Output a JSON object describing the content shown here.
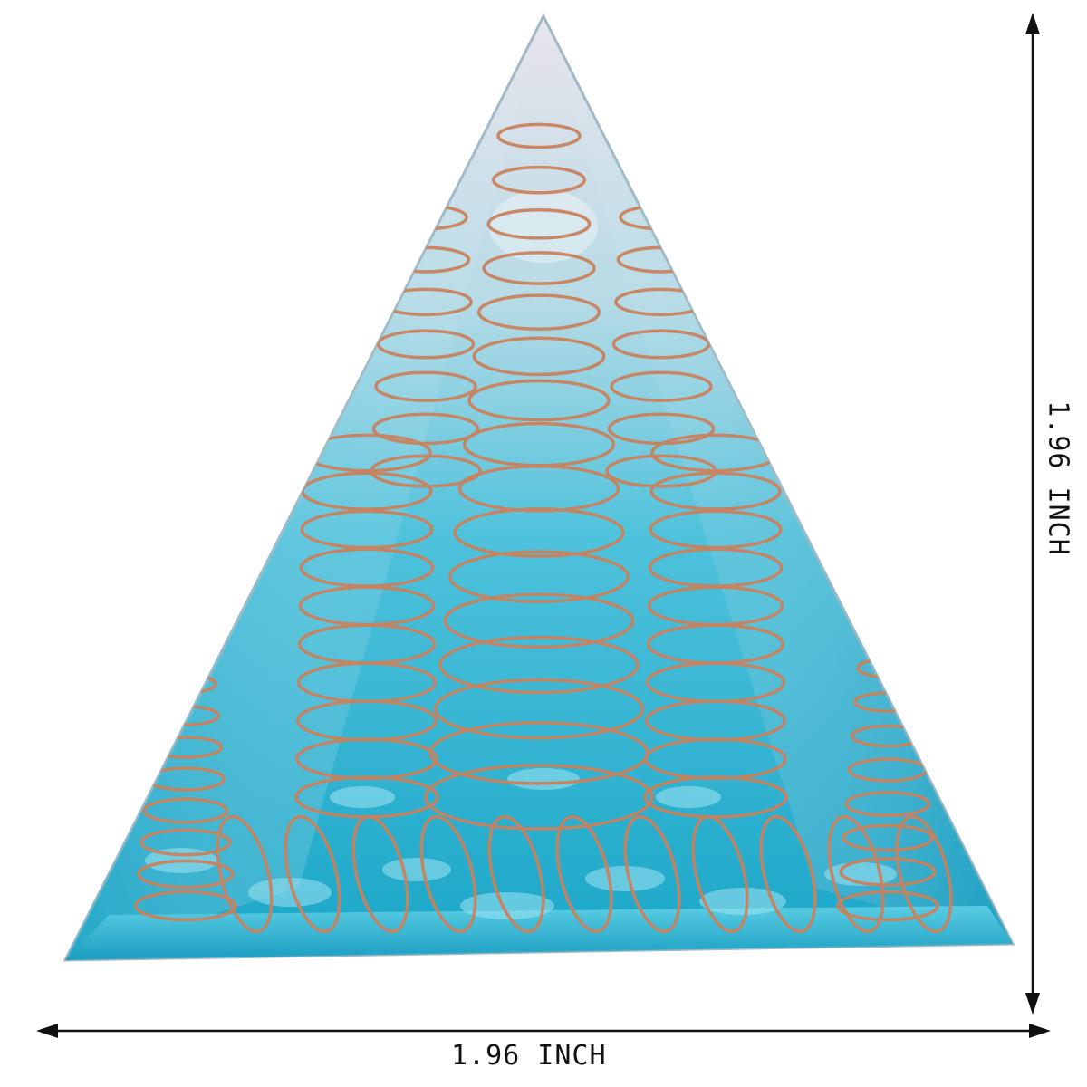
{
  "product": {
    "subject": "orgone pyramid with copper coils",
    "resin_color": "#2fb3d3",
    "copper_color": "#c9825e"
  },
  "dimensions": {
    "width_label": "1.96 INCH",
    "height_label": "1.96 INCH"
  }
}
